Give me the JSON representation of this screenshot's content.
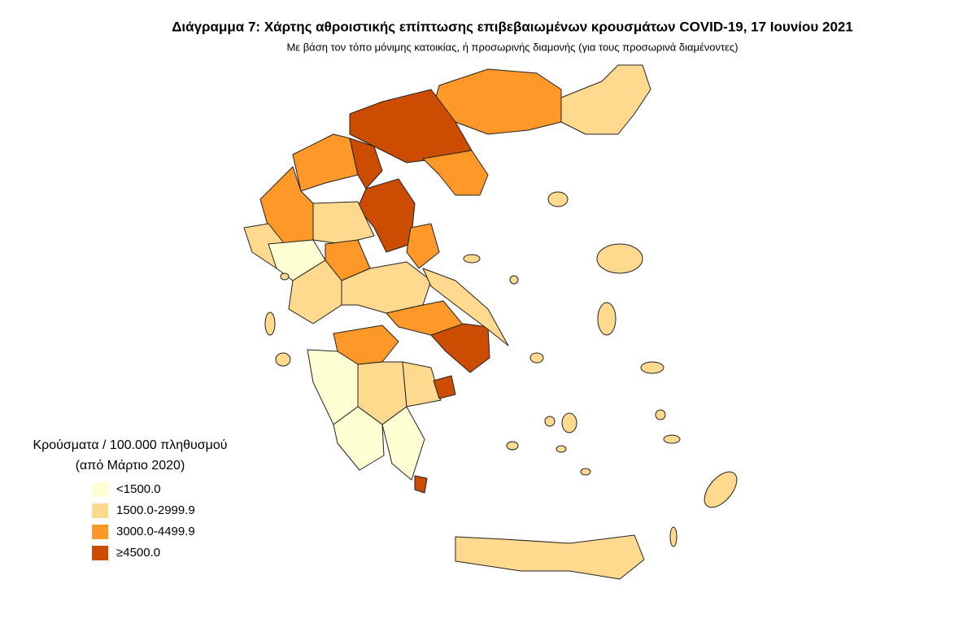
{
  "title": "Διάγραμμα 7: Χάρτης αθροιστικής επίπτωσης επιβεβαιωμένων κρουσμάτων COVID-19, 17 Ιουνίου 2021",
  "subtitle": "Με βάση τον τόπο μόνιμης κατοικίας, ή προσωρινής διαμονής (για τους προσωρινά διαμένοντες)",
  "legend": {
    "title": [
      "Κρούσματα / 100.000 πληθυσμού",
      "(από Μάρτιο 2020)"
    ],
    "items": [
      {
        "label": "<1500.0",
        "color": "#ffffd4"
      },
      {
        "label": "1500.0-2999.9",
        "color": "#fed98e"
      },
      {
        "label": "3000.0-4499.9",
        "color": "#fe9929"
      },
      {
        "label": "≥4500.0",
        "color": "#cc4c02"
      }
    ]
  }
}
